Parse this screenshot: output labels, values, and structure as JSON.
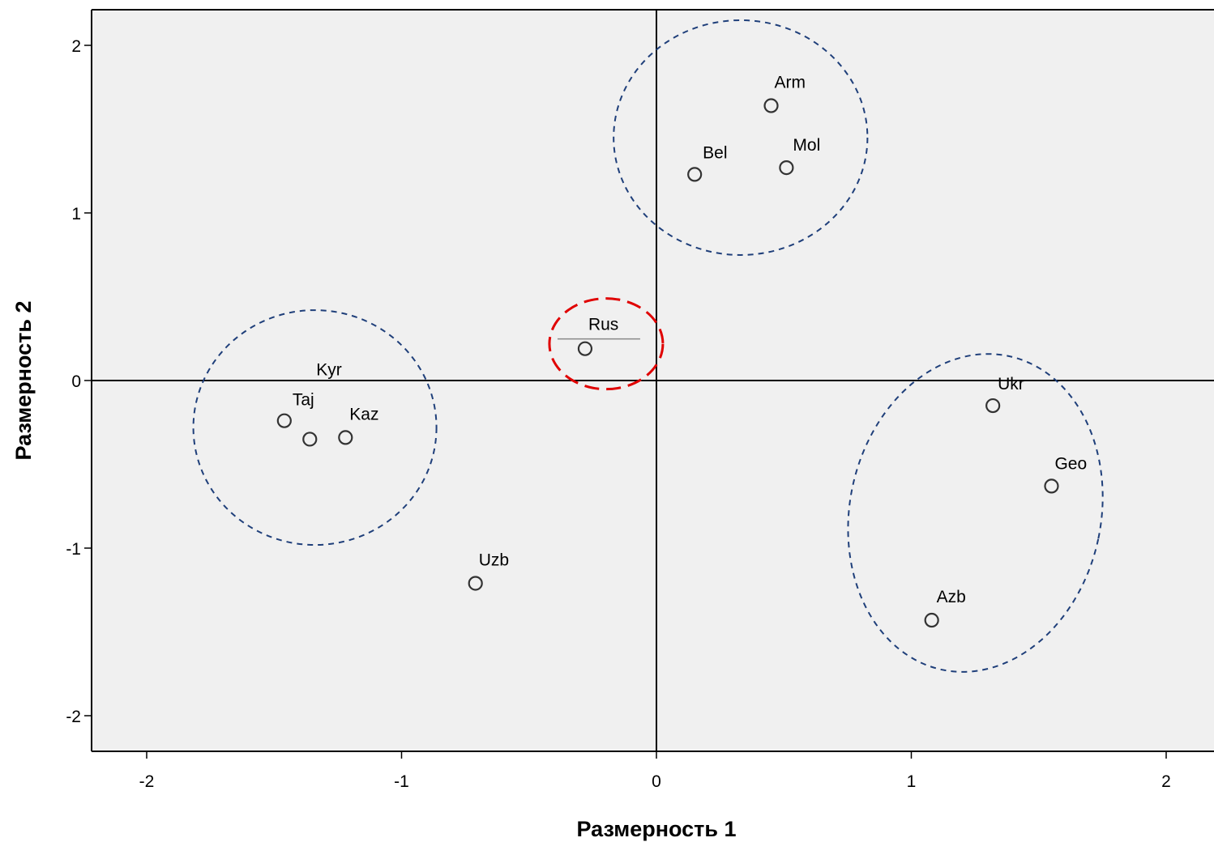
{
  "chart_data": {
    "type": "scatter",
    "title": "",
    "xlabel": "Размерность 1",
    "ylabel": "Размерность 2",
    "xlim": [
      -2.2,
      2.2
    ],
    "ylim": [
      -2.22,
      2.22
    ],
    "xticks": [
      -2,
      -1,
      0,
      1,
      2
    ],
    "yticks": [
      -2,
      -1,
      0,
      1,
      2
    ],
    "xtick_labels": [
      "-2",
      "-1",
      "0",
      "1",
      "2"
    ],
    "ytick_labels": [
      "-2",
      "-1",
      "0",
      "1",
      "2"
    ],
    "grid": false,
    "reference_lines": {
      "x": 0,
      "y": 0
    },
    "points": [
      {
        "label": "Arm",
        "x": 0.45,
        "y": 1.64
      },
      {
        "label": "Bel",
        "x": 0.15,
        "y": 1.23
      },
      {
        "label": "Mol",
        "x": 0.51,
        "y": 1.27
      },
      {
        "label": "Rus",
        "x": -0.28,
        "y": 0.19
      },
      {
        "label": "Kyr",
        "x": -1.36,
        "y": -0.35
      },
      {
        "label": "Taj",
        "x": -1.46,
        "y": -0.24
      },
      {
        "label": "Kaz",
        "x": -1.22,
        "y": -0.34
      },
      {
        "label": "Uzb",
        "x": -0.71,
        "y": -1.21
      },
      {
        "label": "Ukr",
        "x": 1.32,
        "y": -0.15
      },
      {
        "label": "Geo",
        "x": 1.55,
        "y": -0.63
      },
      {
        "label": "Azb",
        "x": 1.08,
        "y": -1.43
      }
    ],
    "groups": [
      {
        "members": [
          "Arm",
          "Bel",
          "Mol"
        ],
        "color": "#1f3f7a",
        "style": "dashed"
      },
      {
        "members": [
          "Kyr",
          "Taj",
          "Kaz"
        ],
        "color": "#1f3f7a",
        "style": "dashed"
      },
      {
        "members": [
          "Ukr",
          "Geo",
          "Azb"
        ],
        "color": "#1f3f7a",
        "style": "dashed"
      },
      {
        "members": [
          "Rus"
        ],
        "color": "#e00000",
        "style": "dashed"
      }
    ],
    "colors": {
      "plot_background": "#f0f0f0",
      "marker_stroke": "#333333",
      "group_outline": "#1f3f7a",
      "highlight_outline": "#e00000",
      "reference_line": "#000000"
    }
  }
}
